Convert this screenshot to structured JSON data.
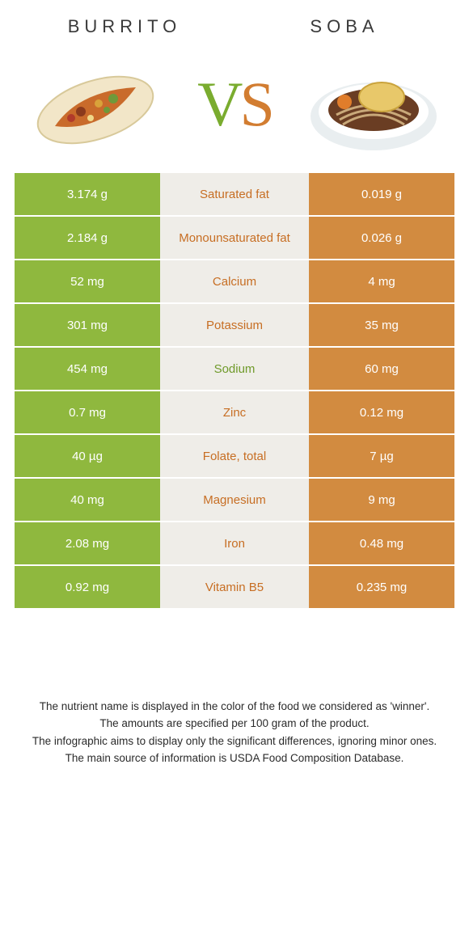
{
  "titles": {
    "left": "Burrito",
    "right": "Soba"
  },
  "vs": {
    "v": "V",
    "s": "S"
  },
  "colors": {
    "left_bg": "#8fb83e",
    "right_bg": "#d28b40",
    "mid_bg": "#efede8",
    "mid_text_left": "#c76e23",
    "mid_text_right": "#6f9a2a"
  },
  "rows": [
    {
      "left": "3.174 g",
      "label": "Saturated fat",
      "right": "0.019 g",
      "winner": "left"
    },
    {
      "left": "2.184 g",
      "label": "Monounsaturated fat",
      "right": "0.026 g",
      "winner": "left"
    },
    {
      "left": "52 mg",
      "label": "Calcium",
      "right": "4 mg",
      "winner": "left"
    },
    {
      "left": "301 mg",
      "label": "Potassium",
      "right": "35 mg",
      "winner": "left"
    },
    {
      "left": "454 mg",
      "label": "Sodium",
      "right": "60 mg",
      "winner": "right"
    },
    {
      "left": "0.7 mg",
      "label": "Zinc",
      "right": "0.12 mg",
      "winner": "left"
    },
    {
      "left": "40 µg",
      "label": "Folate, total",
      "right": "7 µg",
      "winner": "left"
    },
    {
      "left": "40 mg",
      "label": "Magnesium",
      "right": "9 mg",
      "winner": "left"
    },
    {
      "left": "2.08 mg",
      "label": "Iron",
      "right": "0.48 mg",
      "winner": "left"
    },
    {
      "left": "0.92 mg",
      "label": "Vitamin B5",
      "right": "0.235 mg",
      "winner": "left"
    }
  ],
  "footnotes": [
    "The nutrient name is displayed in the color of the food we considered as 'winner'.",
    "The amounts are specified per 100 gram of the product.",
    "The infographic aims to display only the significant differences, ignoring minor ones.",
    "The main source of information is USDA Food Composition Database."
  ]
}
